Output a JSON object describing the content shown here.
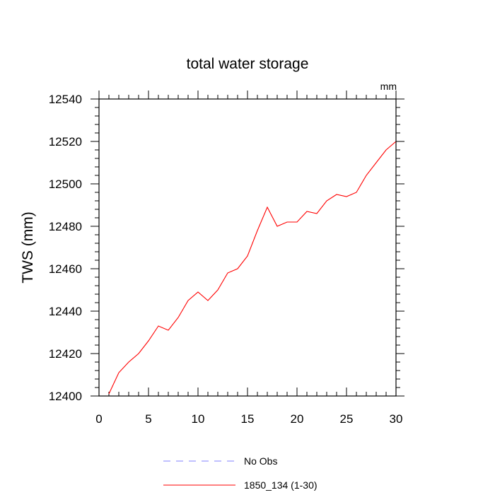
{
  "chart_data": {
    "type": "line",
    "title": "total water storage",
    "units_label": "mm",
    "xlabel": "",
    "ylabel": "TWS  (mm)",
    "xlim": [
      0,
      30
    ],
    "ylim": [
      12400,
      12540
    ],
    "x_major_ticks": [
      0,
      5,
      10,
      15,
      20,
      25,
      30
    ],
    "x_minor_step": 1,
    "y_major_ticks": [
      12400,
      12420,
      12440,
      12460,
      12480,
      12500,
      12520,
      12540
    ],
    "y_minor_step": 4,
    "grid": false,
    "legend_position": "bottom",
    "series": [
      {
        "name": "No Obs",
        "color": "#8080ff",
        "dash": "dashed",
        "x": [],
        "y": []
      },
      {
        "name": "1850_134 (1-30)",
        "color": "#ff0000",
        "dash": "solid",
        "x": [
          1,
          2,
          3,
          4,
          5,
          6,
          7,
          8,
          9,
          10,
          11,
          12,
          13,
          14,
          15,
          16,
          17,
          18,
          19,
          20,
          21,
          22,
          23,
          24,
          25,
          26,
          27,
          28,
          29,
          30
        ],
        "y": [
          12401,
          12411,
          12416,
          12420,
          12426,
          12433,
          12431,
          12437,
          12445,
          12449,
          12445,
          12450,
          12458,
          12460,
          12466,
          12478,
          12489,
          12480,
          12482,
          12482,
          12487,
          12486,
          12492,
          12495,
          12494,
          12496,
          12504,
          12510,
          12516,
          12520
        ]
      }
    ]
  }
}
